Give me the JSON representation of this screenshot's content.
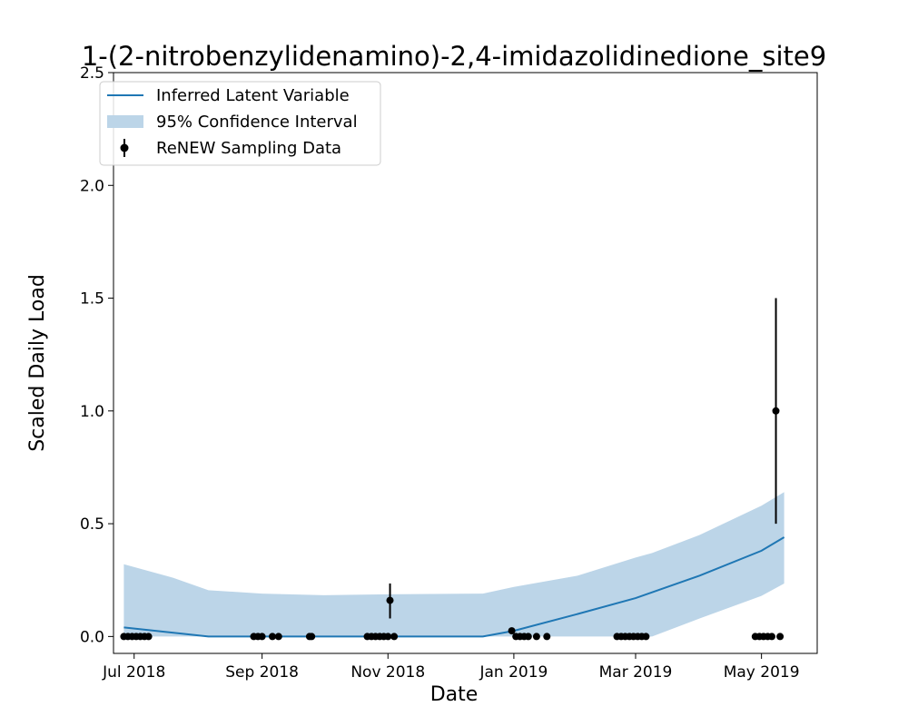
{
  "chart_data": {
    "type": "line",
    "title": "1-(2-nitrobenzylidenamino)-2,4-imidazolidinedione_site9",
    "xlabel": "Date",
    "ylabel": "Scaled Daily Load",
    "xlim": [
      "2018-06-21",
      "2019-05-28"
    ],
    "ylim": [
      -0.075,
      2.5
    ],
    "x_ticks": [
      {
        "date": "2018-07-01",
        "label": "Jul 2018"
      },
      {
        "date": "2018-09-01",
        "label": "Sep 2018"
      },
      {
        "date": "2018-11-01",
        "label": "Nov 2018"
      },
      {
        "date": "2019-01-01",
        "label": "Jan 2019"
      },
      {
        "date": "2019-03-01",
        "label": "Mar 2019"
      },
      {
        "date": "2019-05-01",
        "label": "May 2019"
      }
    ],
    "y_ticks": [
      {
        "value": 0.0,
        "label": "0.0"
      },
      {
        "value": 0.5,
        "label": "0.5"
      },
      {
        "value": 1.0,
        "label": "1.0"
      },
      {
        "value": 1.5,
        "label": "1.5"
      },
      {
        "value": 2.0,
        "label": "2.0"
      },
      {
        "value": 2.5,
        "label": "2.5"
      }
    ],
    "legend": {
      "placement": "upper-left",
      "entries": [
        {
          "label": "Inferred Latent Variable",
          "kind": "line"
        },
        {
          "label": "95% Confidence Interval",
          "kind": "band"
        },
        {
          "label": "ReNEW Sampling Data",
          "kind": "errorbar-point"
        }
      ]
    },
    "grid": false,
    "colors": {
      "line": "#1f77b4",
      "band": "#bcd5e8",
      "points": "#000000"
    },
    "series": [
      {
        "name": "Inferred Latent Variable",
        "kind": "line",
        "points": [
          {
            "x": "2018-06-26",
            "y": 0.04
          },
          {
            "x": "2018-08-06",
            "y": 0.0
          },
          {
            "x": "2018-11-20",
            "y": 0.0
          },
          {
            "x": "2018-12-17",
            "y": 0.0
          },
          {
            "x": "2019-01-01",
            "y": 0.025
          },
          {
            "x": "2019-02-01",
            "y": 0.1
          },
          {
            "x": "2019-03-01",
            "y": 0.17
          },
          {
            "x": "2019-04-01",
            "y": 0.27
          },
          {
            "x": "2019-05-01",
            "y": 0.38
          },
          {
            "x": "2019-05-12",
            "y": 0.44
          }
        ]
      },
      {
        "name": "95% Confidence Interval",
        "kind": "band",
        "points": [
          {
            "x": "2018-06-26",
            "lower": 0.0,
            "upper": 0.32
          },
          {
            "x": "2018-07-20",
            "lower": 0.0,
            "upper": 0.26
          },
          {
            "x": "2018-08-06",
            "lower": 0.0,
            "upper": 0.205
          },
          {
            "x": "2018-09-01",
            "lower": 0.0,
            "upper": 0.19
          },
          {
            "x": "2018-10-01",
            "lower": 0.0,
            "upper": 0.183
          },
          {
            "x": "2018-11-01",
            "lower": 0.0,
            "upper": 0.187
          },
          {
            "x": "2018-12-17",
            "lower": 0.0,
            "upper": 0.19
          },
          {
            "x": "2019-01-01",
            "lower": 0.0,
            "upper": 0.22
          },
          {
            "x": "2019-02-01",
            "lower": 0.0,
            "upper": 0.27
          },
          {
            "x": "2019-03-01",
            "lower": 0.0,
            "upper": 0.35
          },
          {
            "x": "2019-03-09",
            "lower": 0.0,
            "upper": 0.37
          },
          {
            "x": "2019-04-01",
            "lower": 0.08,
            "upper": 0.45
          },
          {
            "x": "2019-05-01",
            "lower": 0.18,
            "upper": 0.58
          },
          {
            "x": "2019-05-12",
            "lower": 0.235,
            "upper": 0.64
          }
        ]
      },
      {
        "name": "ReNEW Sampling Data",
        "kind": "errorbar-point",
        "points": [
          {
            "x": "2018-06-26",
            "y": 0.0
          },
          {
            "x": "2018-06-28",
            "y": 0.0
          },
          {
            "x": "2018-06-30",
            "y": 0.0
          },
          {
            "x": "2018-07-02",
            "y": 0.0
          },
          {
            "x": "2018-07-04",
            "y": 0.0
          },
          {
            "x": "2018-07-06",
            "y": 0.0
          },
          {
            "x": "2018-07-08",
            "y": 0.0
          },
          {
            "x": "2018-08-28",
            "y": 0.0
          },
          {
            "x": "2018-08-30",
            "y": 0.0
          },
          {
            "x": "2018-09-01",
            "y": 0.0
          },
          {
            "x": "2018-09-06",
            "y": 0.0
          },
          {
            "x": "2018-09-09",
            "y": 0.0
          },
          {
            "x": "2018-09-24",
            "y": 0.0
          },
          {
            "x": "2018-09-25",
            "y": 0.0
          },
          {
            "x": "2018-10-22",
            "y": 0.0
          },
          {
            "x": "2018-10-24",
            "y": 0.0
          },
          {
            "x": "2018-10-26",
            "y": 0.0
          },
          {
            "x": "2018-10-28",
            "y": 0.0
          },
          {
            "x": "2018-10-30",
            "y": 0.0
          },
          {
            "x": "2018-11-01",
            "y": 0.0
          },
          {
            "x": "2018-11-02",
            "y": 0.16,
            "err_low": 0.08,
            "err_high": 0.235
          },
          {
            "x": "2018-11-04",
            "y": 0.0
          },
          {
            "x": "2018-12-31",
            "y": 0.025
          },
          {
            "x": "2019-01-02",
            "y": 0.0
          },
          {
            "x": "2019-01-04",
            "y": 0.0
          },
          {
            "x": "2019-01-06",
            "y": 0.0
          },
          {
            "x": "2019-01-08",
            "y": 0.0
          },
          {
            "x": "2019-01-12",
            "y": 0.0
          },
          {
            "x": "2019-01-17",
            "y": 0.0
          },
          {
            "x": "2019-02-20",
            "y": 0.0
          },
          {
            "x": "2019-02-22",
            "y": 0.0
          },
          {
            "x": "2019-02-24",
            "y": 0.0
          },
          {
            "x": "2019-02-26",
            "y": 0.0
          },
          {
            "x": "2019-02-28",
            "y": 0.0
          },
          {
            "x": "2019-03-02",
            "y": 0.0
          },
          {
            "x": "2019-03-04",
            "y": 0.0
          },
          {
            "x": "2019-03-06",
            "y": 0.0
          },
          {
            "x": "2019-04-28",
            "y": 0.0
          },
          {
            "x": "2019-04-30",
            "y": 0.0
          },
          {
            "x": "2019-05-02",
            "y": 0.0
          },
          {
            "x": "2019-05-04",
            "y": 0.0
          },
          {
            "x": "2019-05-06",
            "y": 0.0
          },
          {
            "x": "2019-05-08",
            "y": 1.0,
            "err_low": 0.5,
            "err_high": 1.5
          },
          {
            "x": "2019-05-10",
            "y": 0.0
          }
        ]
      }
    ]
  }
}
